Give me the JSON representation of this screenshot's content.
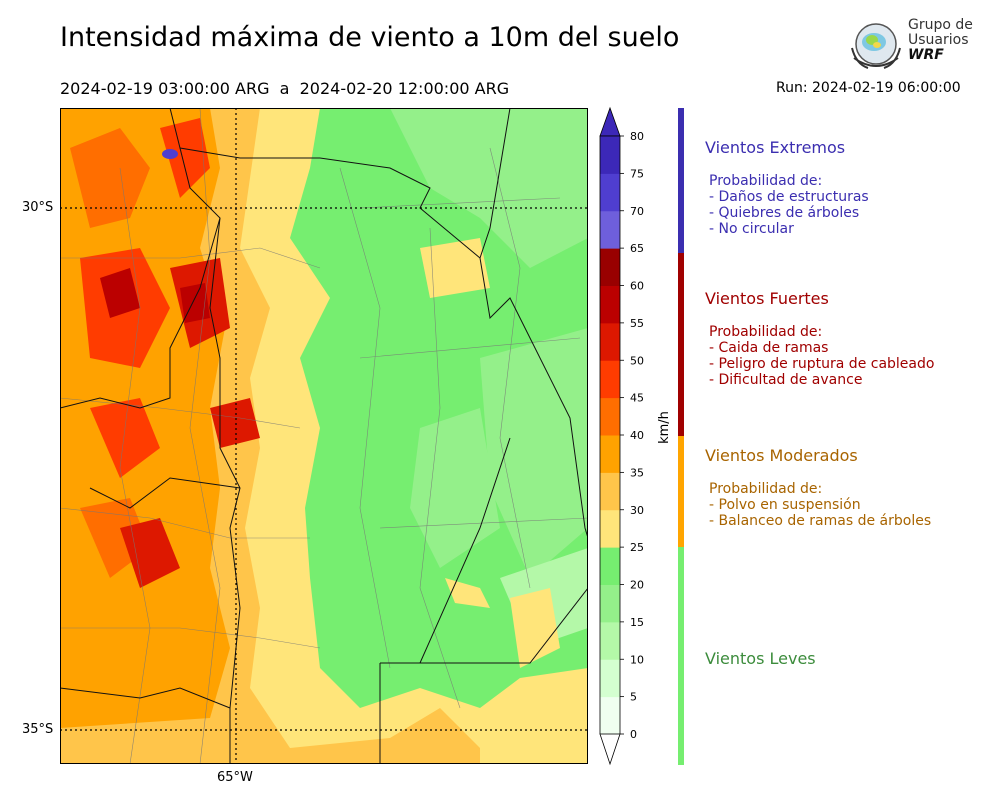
{
  "header": {
    "title": "Intensidad máxima de viento a 10m del suelo",
    "period": "2024-02-19 03:00:00 ARG  a  2024-02-20 12:00:00 ARG",
    "run": "Run: 2024-02-19 06:00:00"
  },
  "logo": {
    "line1": "Grupo de",
    "line2": "Usuarios",
    "line3": "WRF",
    "icon": "globe-logo-icon"
  },
  "map": {
    "lat_labels": [
      "30°S",
      "35°S"
    ],
    "lon_labels": [
      "65°W"
    ]
  },
  "colorbar": {
    "unit": "km/h",
    "ticks": [
      "0",
      "5",
      "10",
      "15",
      "20",
      "25",
      "30",
      "35",
      "40",
      "45",
      "50",
      "55",
      "60",
      "65",
      "70",
      "75",
      "80"
    ],
    "colors": [
      "#f0fff0",
      "#d4ffd0",
      "#b4f8a8",
      "#94f08a",
      "#76ee70",
      "#ffe57a",
      "#ffc54a",
      "#ffa200",
      "#ff6e00",
      "#ff3c00",
      "#dd1800",
      "#bb0000",
      "#990000",
      "#6e5fdc",
      "#4f3ed0",
      "#3c28b8"
    ],
    "extend_color": "#3c28b8",
    "extend_low": "#ffffff"
  },
  "legend": {
    "categories": [
      {
        "title": "Vientos Extremos",
        "color": "#3b2eb0",
        "intro": "Probabilidad de:",
        "lines": [
          "- Daños de estructuras",
          "- Quiebres de árboles",
          "- No circular"
        ]
      },
      {
        "title": "Vientos Fuertes",
        "color": "#a00000",
        "intro": "Probabilidad de:",
        "lines": [
          "- Caida de ramas",
          "- Peligro de ruptura de cableado",
          "- Dificultad de avance"
        ]
      },
      {
        "title": "Vientos Moderados",
        "color": "#a86400",
        "intro": "Probabilidad de:",
        "lines": [
          "- Polvo en suspensión",
          "- Balanceo de ramas de árboles"
        ]
      },
      {
        "title": "Vientos Leves",
        "color": "#3c8c3c",
        "intro": "",
        "lines": []
      }
    ],
    "bar_colors": [
      "#3b2eb0",
      "#a00000",
      "#ffa500",
      "#76ee70"
    ]
  }
}
